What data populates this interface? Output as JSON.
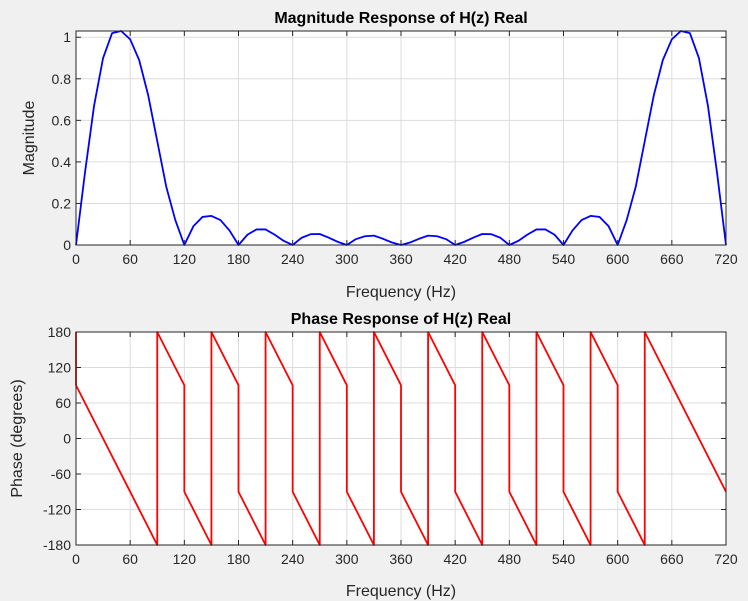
{
  "chart_data": [
    {
      "type": "line",
      "title": "Magnitude Response of H(z) Real",
      "xlabel": "Frequency (Hz)",
      "ylabel": "Magnitude",
      "xlim": [
        0,
        720
      ],
      "ylim": [
        0,
        1.03
      ],
      "xticks": [
        0,
        60,
        120,
        180,
        240,
        300,
        360,
        420,
        480,
        540,
        600,
        660,
        720
      ],
      "yticks": [
        0,
        0.2,
        0.4,
        0.6,
        0.8,
        1
      ],
      "ytick_labels": [
        "0",
        "0.2",
        "0.4",
        "0.6",
        "0.8",
        "1"
      ],
      "grid": true,
      "color": "#0000ff",
      "series": [
        {
          "x": [
            0,
            10,
            20,
            30,
            40,
            50,
            60,
            70,
            80,
            90,
            100,
            110,
            120,
            130,
            140,
            150,
            160,
            170,
            180,
            190,
            200,
            210,
            220,
            230,
            240,
            250,
            260,
            270,
            280,
            290,
            300,
            310,
            320,
            330,
            340,
            350,
            360,
            370,
            380,
            390,
            400,
            410,
            420,
            430,
            440,
            450,
            460,
            470,
            480,
            490,
            500,
            510,
            520,
            530,
            540,
            550,
            560,
            570,
            580,
            590,
            600,
            610,
            620,
            630,
            640,
            650,
            660,
            670,
            680,
            690,
            700,
            710,
            720
          ],
          "y": [
            0,
            0.35,
            0.67,
            0.9,
            1.02,
            1.03,
            0.99,
            0.89,
            0.72,
            0.5,
            0.28,
            0.12,
            0.0,
            0.09,
            0.135,
            0.14,
            0.12,
            0.07,
            0.0,
            0.05,
            0.075,
            0.075,
            0.05,
            0.02,
            0.0,
            0.035,
            0.052,
            0.053,
            0.035,
            0.015,
            0.0,
            0.028,
            0.042,
            0.045,
            0.03,
            0.012,
            0.0,
            0.012,
            0.03,
            0.045,
            0.042,
            0.028,
            0.0,
            0.015,
            0.035,
            0.053,
            0.052,
            0.035,
            0.0,
            0.02,
            0.05,
            0.075,
            0.075,
            0.05,
            0.0,
            0.07,
            0.12,
            0.14,
            0.135,
            0.09,
            0.0,
            0.12,
            0.28,
            0.5,
            0.72,
            0.89,
            0.99,
            1.03,
            1.02,
            0.9,
            0.67,
            0.35,
            0
          ]
        }
      ]
    },
    {
      "type": "line",
      "title": "Phase Response of H(z) Real",
      "xlabel": "Frequency (Hz)",
      "ylabel": "Phase (degrees)",
      "xlim": [
        0,
        720
      ],
      "ylim": [
        -180,
        180
      ],
      "xticks": [
        0,
        60,
        120,
        180,
        240,
        300,
        360,
        420,
        480,
        540,
        600,
        660,
        720
      ],
      "yticks": [
        -180,
        -120,
        -60,
        0,
        60,
        120,
        180
      ],
      "ytick_labels": [
        "-180",
        "-120",
        "-60",
        "0",
        "60",
        "120",
        "180"
      ],
      "grid": true,
      "color": "#ff0000",
      "series": [
        {
          "x": [
            0,
            0,
            90,
            90,
            120,
            120,
            150,
            150,
            180,
            180,
            210,
            210,
            240,
            240,
            270,
            270,
            300,
            300,
            330,
            330,
            360,
            360,
            390,
            390,
            420,
            420,
            450,
            450,
            480,
            480,
            510,
            510,
            540,
            540,
            570,
            570,
            600,
            600,
            630,
            630,
            720
          ],
          "y": [
            180,
            90,
            -180,
            180,
            90,
            -90,
            -180,
            180,
            90,
            -90,
            -180,
            180,
            90,
            -90,
            -180,
            180,
            90,
            -90,
            -180,
            180,
            90,
            -90,
            -180,
            180,
            90,
            -90,
            -180,
            180,
            90,
            -90,
            -180,
            180,
            90,
            -90,
            -180,
            180,
            90,
            -90,
            -180,
            180,
            -90
          ]
        }
      ]
    }
  ]
}
